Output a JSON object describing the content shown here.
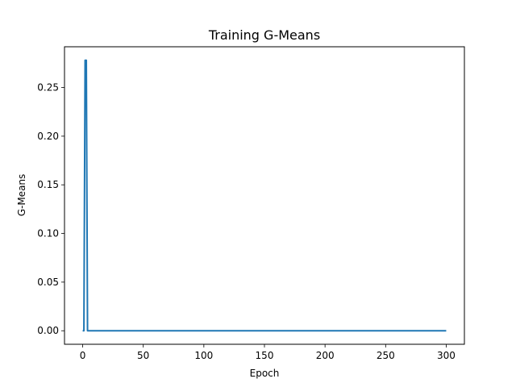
{
  "chart_data": {
    "type": "line",
    "title": "Training G-Means",
    "xlabel": "Epoch",
    "ylabel": "G-Means",
    "xlim": [
      -15,
      315
    ],
    "ylim": [
      -0.0139,
      0.2919
    ],
    "xticks": [
      0,
      50,
      100,
      150,
      200,
      250,
      300
    ],
    "yticks": [
      0.0,
      0.05,
      0.1,
      0.15,
      0.2,
      0.25
    ],
    "xtick_labels": [
      "0",
      "50",
      "100",
      "150",
      "200",
      "250",
      "300"
    ],
    "ytick_labels": [
      "0.00",
      "0.05",
      "0.10",
      "0.15",
      "0.20",
      "0.25"
    ],
    "grid": false,
    "series": [
      {
        "color": "#1f77b4",
        "x": [
          0,
          1,
          2,
          3,
          4,
          5,
          10,
          50,
          100,
          150,
          200,
          250,
          300
        ],
        "y": [
          0.0,
          0.0,
          0.278,
          0.278,
          0.0,
          0.0,
          0.0,
          0.0,
          0.0,
          0.0,
          0.0,
          0.0,
          0.0
        ]
      }
    ]
  }
}
